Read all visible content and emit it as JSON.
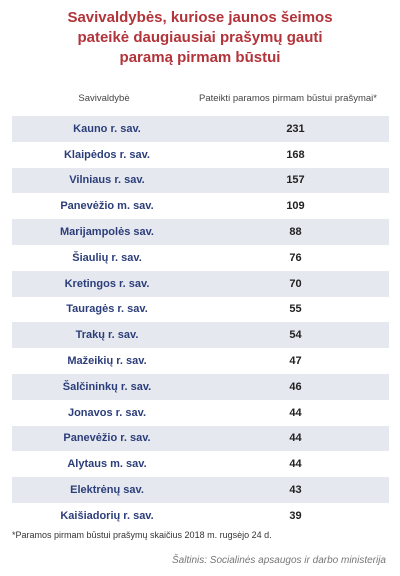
{
  "title_lines": [
    "Savivaldybės, kuriose jaunos šeimos",
    "pateikė daugiausiai prašymų gauti",
    "paramą pirmam būstui"
  ],
  "headers": {
    "municipality": "Savivaldybė",
    "requests": "Pateikti paramos pirmam būstui prašymai*"
  },
  "footnote": "*Paramos pirmam būstui prašymų skaičius 2018 m. rugsėjo 24 d.",
  "source": "Šaltinis: Socialinės apsaugos ir darbo ministerija",
  "colors": {
    "title": "#b2343a",
    "municipality_text": "#2c3e7a",
    "shaded_row": "#e5e8ef"
  },
  "chart_data": {
    "type": "table",
    "title": "Savivaldybės, kuriose jaunos šeimos pateikė daugiausiai prašymų gauti paramą pirmam būstui",
    "columns": [
      "Savivaldybė",
      "Pateikti paramos pirmam būstui prašymai*"
    ],
    "rows": [
      {
        "municipality": "Kauno r. sav.",
        "requests": 231
      },
      {
        "municipality": "Klaipėdos r. sav.",
        "requests": 168
      },
      {
        "municipality": "Vilniaus r. sav.",
        "requests": 157
      },
      {
        "municipality": "Panevėžio m. sav.",
        "requests": 109
      },
      {
        "municipality": "Marijampolės sav.",
        "requests": 88
      },
      {
        "municipality": "Šiaulių r. sav.",
        "requests": 76
      },
      {
        "municipality": "Kretingos r. sav.",
        "requests": 70
      },
      {
        "municipality": "Tauragės r. sav.",
        "requests": 55
      },
      {
        "municipality": "Trakų r. sav.",
        "requests": 54
      },
      {
        "municipality": "Mažeikių r. sav.",
        "requests": 47
      },
      {
        "municipality": "Šalčininkų r. sav.",
        "requests": 46
      },
      {
        "municipality": "Jonavos r. sav.",
        "requests": 44
      },
      {
        "municipality": "Panevėžio r. sav.",
        "requests": 44
      },
      {
        "municipality": "Alytaus m. sav.",
        "requests": 44
      },
      {
        "municipality": "Elektrėnų sav.",
        "requests": 43
      },
      {
        "municipality": "Kaišiadorių r.  sav.",
        "requests": 39
      }
    ]
  }
}
